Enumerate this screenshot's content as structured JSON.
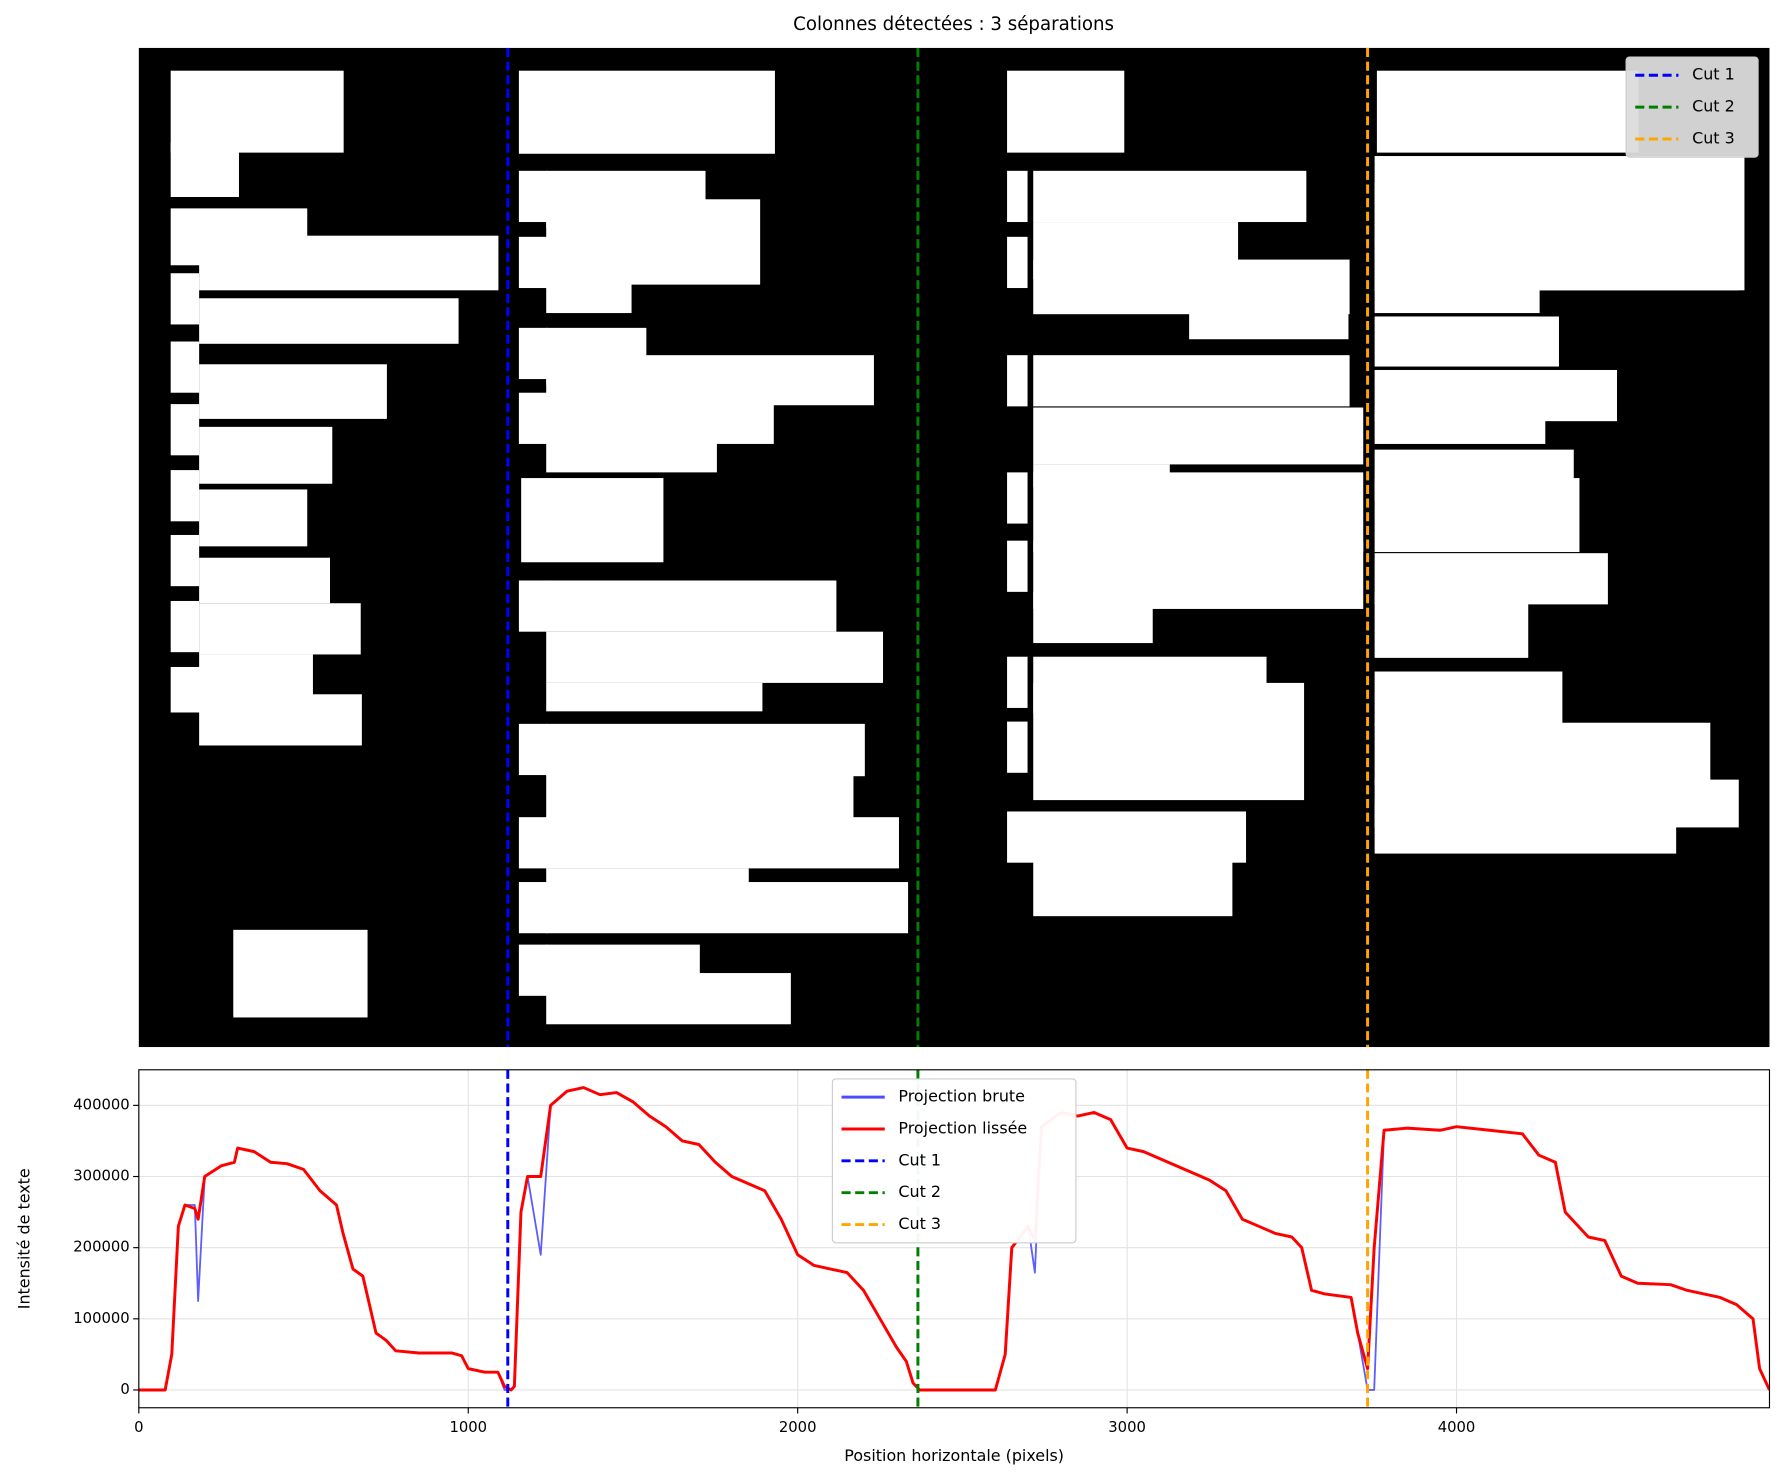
{
  "chart_data": [
    {
      "type": "image",
      "title": "Colonnes détectées : 3 séparations",
      "legend": "upper right"
    },
    {
      "type": "line",
      "xlabel": "Position horizontale (pixels)",
      "ylabel": "Intensité de texte",
      "xlim": [
        0,
        4950
      ],
      "ylim": [
        -25000,
        450000
      ],
      "xticks": [
        0,
        1000,
        2000,
        3000,
        4000
      ],
      "yticks": [
        0,
        100000,
        200000,
        300000,
        400000
      ],
      "grid": true,
      "legend": "upper center",
      "x": [
        0,
        80,
        100,
        120,
        140,
        170,
        180,
        200,
        250,
        290,
        300,
        350,
        400,
        450,
        500,
        550,
        600,
        620,
        650,
        680,
        700,
        720,
        750,
        780,
        850,
        950,
        980,
        1000,
        1050,
        1090,
        1110,
        1130,
        1140,
        1160,
        1180,
        1220,
        1250,
        1300,
        1350,
        1400,
        1450,
        1500,
        1550,
        1600,
        1650,
        1700,
        1750,
        1800,
        1850,
        1900,
        1950,
        2000,
        2050,
        2100,
        2150,
        2200,
        2250,
        2300,
        2330,
        2350,
        2370,
        2600,
        2630,
        2650,
        2700,
        2720,
        2740,
        2800,
        2850,
        2900,
        2950,
        3000,
        3050,
        3100,
        3150,
        3200,
        3250,
        3300,
        3350,
        3400,
        3450,
        3500,
        3530,
        3560,
        3600,
        3680,
        3700,
        3730,
        3750,
        3780,
        3850,
        3950,
        4000,
        4100,
        4200,
        4250,
        4300,
        4330,
        4400,
        4450,
        4500,
        4550,
        4650,
        4700,
        4800,
        4850,
        4900,
        4920,
        4950
      ],
      "series": [
        {
          "name": "Projection brute",
          "color": "#4d4dff",
          "values": [
            0,
            0,
            50000,
            230000,
            260000,
            260000,
            125000,
            300000,
            315000,
            320000,
            340000,
            335000,
            320000,
            318000,
            310000,
            280000,
            260000,
            220000,
            170000,
            160000,
            120000,
            80000,
            70000,
            55000,
            52000,
            52000,
            48000,
            30000,
            25000,
            25000,
            0,
            0,
            5000,
            250000,
            300000,
            190000,
            400000,
            420000,
            425000,
            415000,
            418000,
            405000,
            385000,
            370000,
            350000,
            345000,
            320000,
            300000,
            290000,
            280000,
            240000,
            190000,
            175000,
            170000,
            165000,
            140000,
            100000,
            60000,
            40000,
            10000,
            0,
            0,
            50000,
            200000,
            230000,
            165000,
            370000,
            390000,
            385000,
            390000,
            380000,
            340000,
            335000,
            325000,
            315000,
            305000,
            295000,
            280000,
            240000,
            230000,
            220000,
            215000,
            200000,
            140000,
            135000,
            130000,
            80000,
            0,
            0,
            365000,
            368000,
            365000,
            370000,
            365000,
            360000,
            330000,
            320000,
            250000,
            215000,
            210000,
            160000,
            150000,
            148000,
            140000,
            130000,
            120000,
            100000,
            30000,
            0
          ]
        },
        {
          "name": "Projection lissée",
          "color": "#ff0000",
          "values": [
            0,
            0,
            50000,
            230000,
            260000,
            255000,
            240000,
            300000,
            315000,
            320000,
            340000,
            335000,
            320000,
            318000,
            310000,
            280000,
            260000,
            220000,
            170000,
            160000,
            120000,
            80000,
            70000,
            55000,
            52000,
            52000,
            48000,
            30000,
            25000,
            25000,
            5000,
            0,
            5000,
            250000,
            300000,
            300000,
            400000,
            420000,
            425000,
            415000,
            418000,
            405000,
            385000,
            370000,
            350000,
            345000,
            320000,
            300000,
            290000,
            280000,
            240000,
            190000,
            175000,
            170000,
            165000,
            140000,
            100000,
            60000,
            40000,
            10000,
            0,
            0,
            50000,
            200000,
            230000,
            210000,
            370000,
            390000,
            385000,
            390000,
            380000,
            340000,
            335000,
            325000,
            315000,
            305000,
            295000,
            280000,
            240000,
            230000,
            220000,
            215000,
            200000,
            140000,
            135000,
            130000,
            80000,
            30000,
            200000,
            365000,
            368000,
            365000,
            370000,
            365000,
            360000,
            330000,
            320000,
            250000,
            215000,
            210000,
            160000,
            150000,
            148000,
            140000,
            130000,
            120000,
            100000,
            30000,
            0
          ]
        }
      ],
      "cuts": [
        {
          "name": "Cut 1",
          "color": "#0000ff",
          "value": 1120
        },
        {
          "name": "Cut 2",
          "color": "#008000",
          "value": 2365
        },
        {
          "name": "Cut 3",
          "color": "#ffa500",
          "value": 3730
        }
      ]
    }
  ]
}
